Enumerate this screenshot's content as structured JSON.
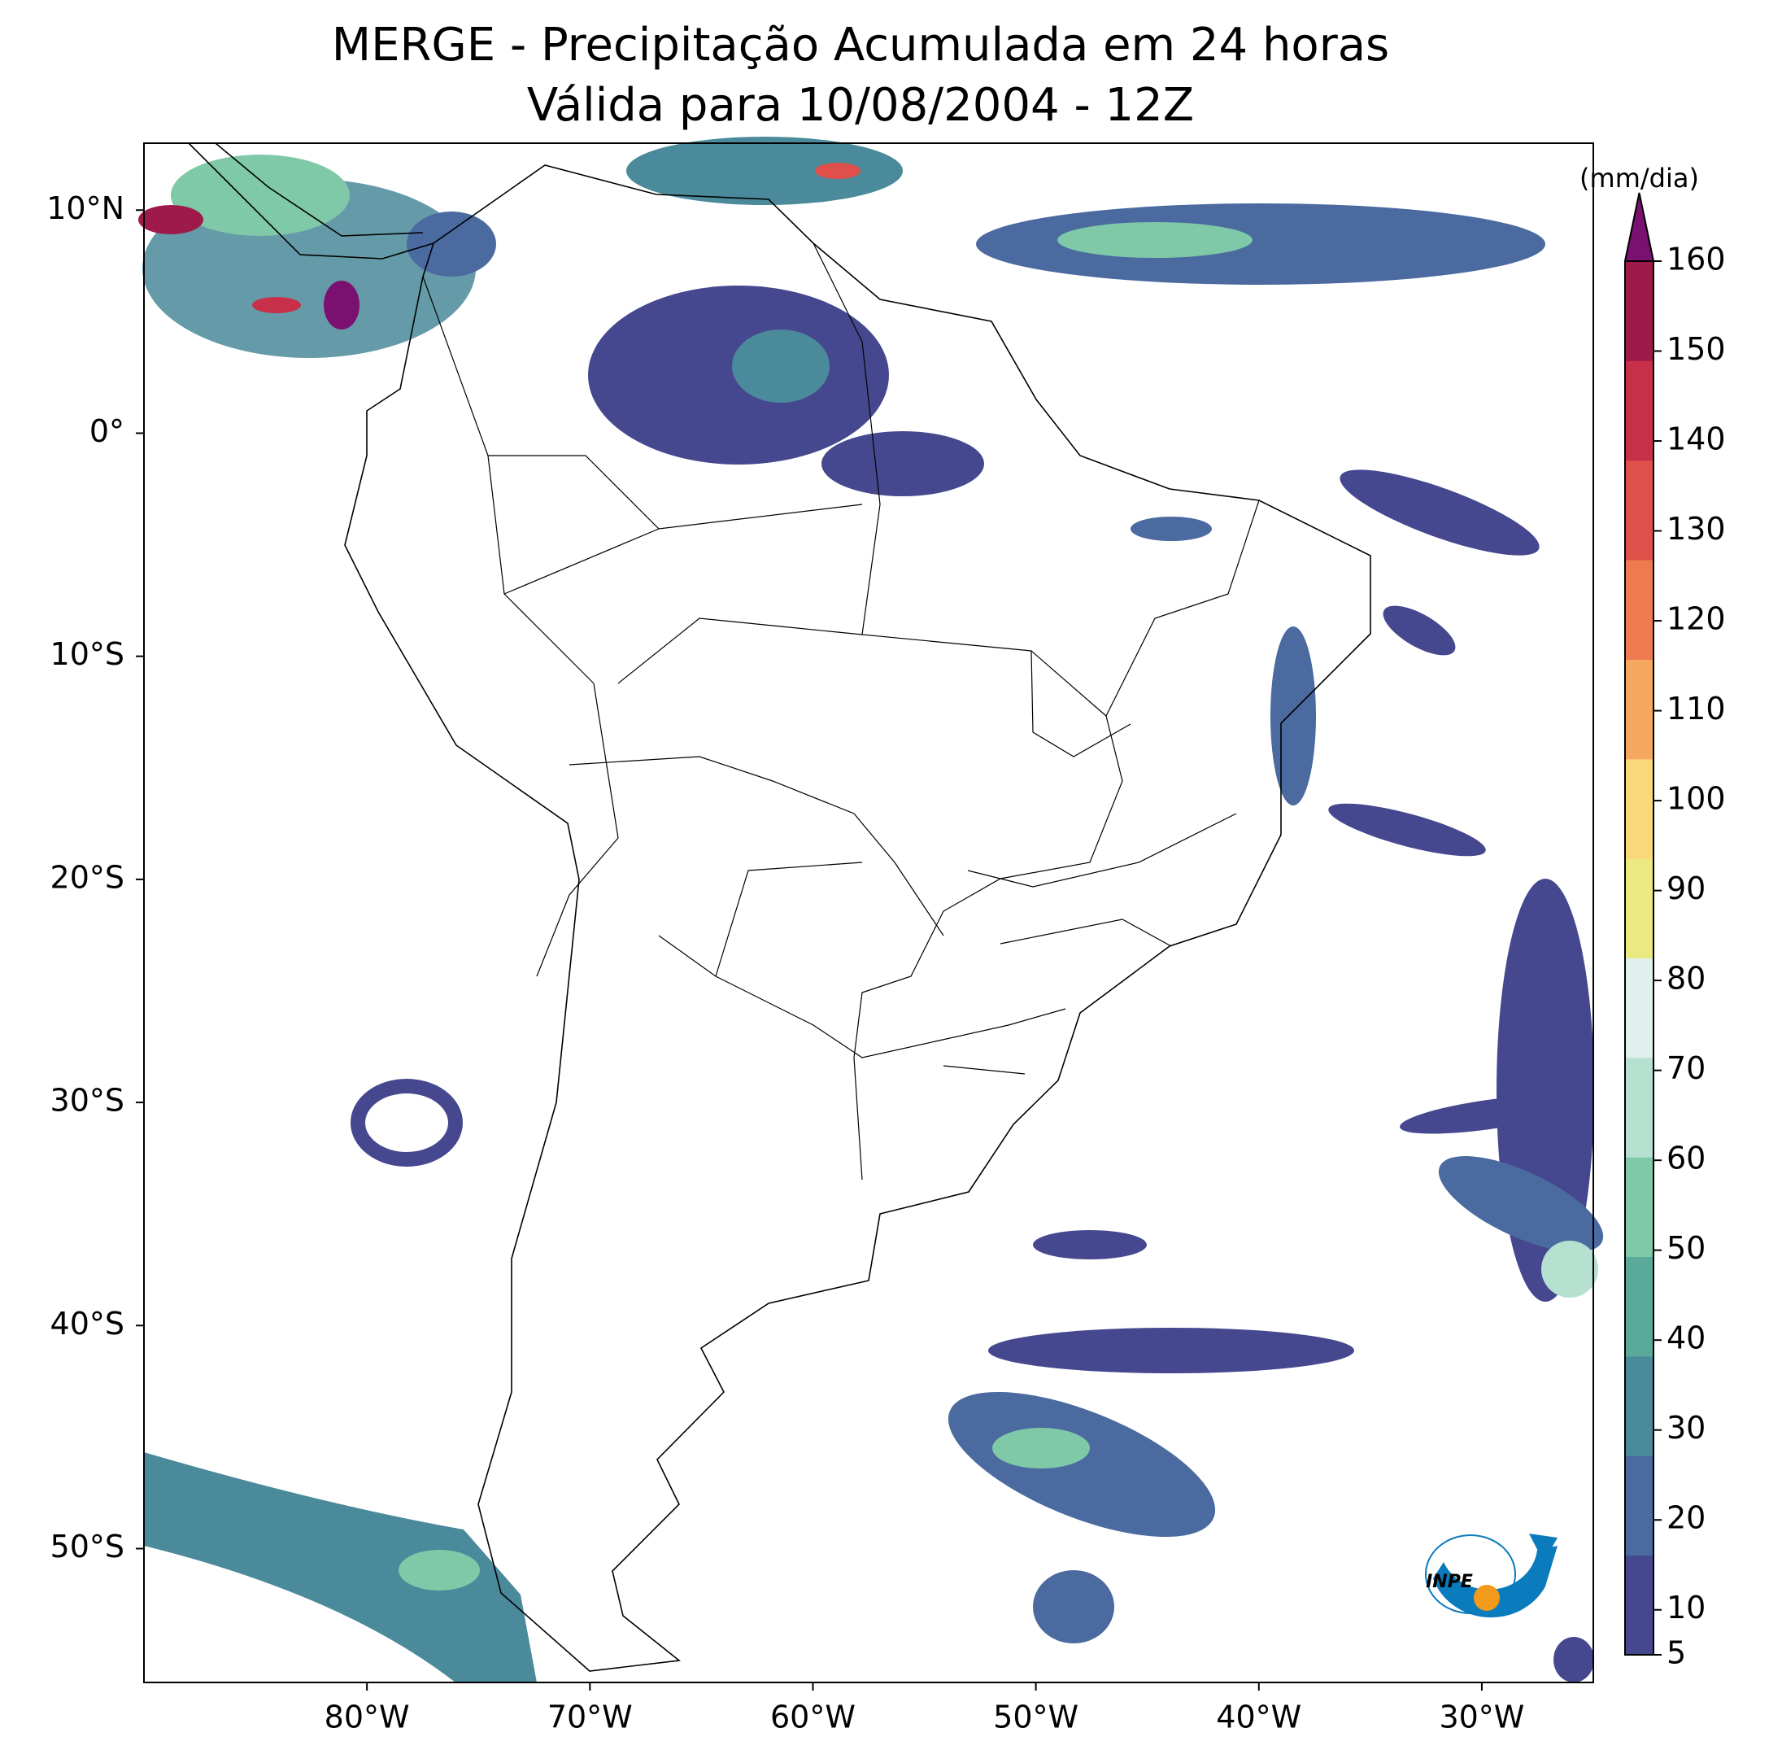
{
  "title": "MERGE - Precipitação Acumulada em 24 horas",
  "subtitle": "Válida para 10/08/2004 - 12Z",
  "map": {
    "xlim": [
      -90,
      -25
    ],
    "ylim": [
      -56,
      13
    ],
    "xticks": [
      {
        "value": -80,
        "label": "80°W"
      },
      {
        "value": -70,
        "label": "70°W"
      },
      {
        "value": -60,
        "label": "60°W"
      },
      {
        "value": -50,
        "label": "50°W"
      },
      {
        "value": -40,
        "label": "40°W"
      },
      {
        "value": -30,
        "label": "30°W"
      }
    ],
    "yticks": [
      {
        "value": 10,
        "label": "10°N"
      },
      {
        "value": 0,
        "label": "0°"
      },
      {
        "value": -10,
        "label": "10°S"
      },
      {
        "value": -20,
        "label": "20°S"
      },
      {
        "value": -30,
        "label": "30°S"
      },
      {
        "value": -40,
        "label": "40°S"
      },
      {
        "value": -50,
        "label": "50°S"
      }
    ]
  },
  "colorbar": {
    "label": "(mm/dia)",
    "lim": [
      5,
      160
    ],
    "ticks": [
      5,
      10,
      20,
      30,
      40,
      50,
      60,
      70,
      80,
      90,
      100,
      110,
      120,
      130,
      140,
      150,
      160
    ],
    "colors": [
      "#46488f",
      "#4a6aa0",
      "#4a8a9a",
      "#5aaa9a",
      "#7fc8a8",
      "#b6e0d0",
      "#dff0ee",
      "#eaea80",
      "#f8d878",
      "#f7a860",
      "#f07a50",
      "#e0504a",
      "#c8304a",
      "#9e1a4a"
    ],
    "extend_color": "#7a1070"
  },
  "logo_text": "INPE"
}
